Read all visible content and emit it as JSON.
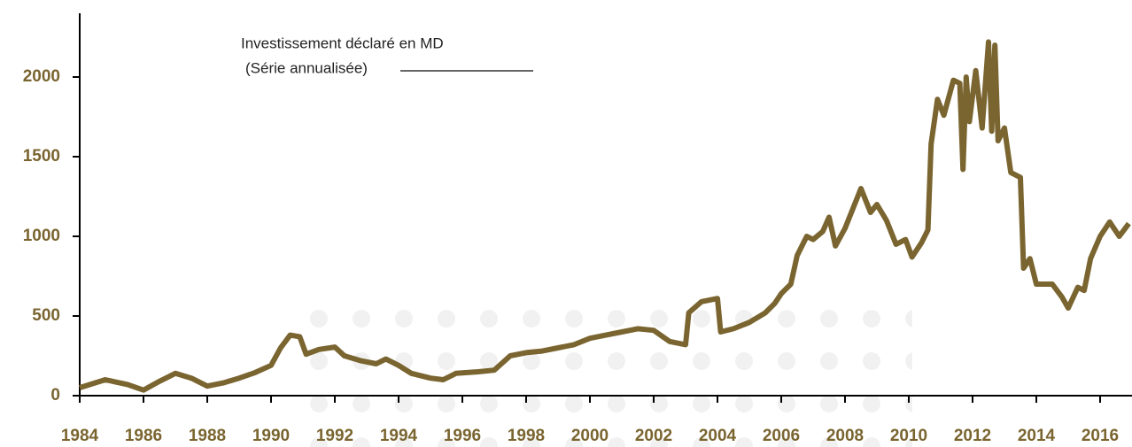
{
  "chart_data": {
    "type": "line",
    "series": [
      {
        "name": "Investissement déclaré en MD",
        "name_note": "(Série annualisée)",
        "color": "#7a6530",
        "x": [
          1984.0,
          1984.8,
          1985.5,
          1986.0,
          1986.5,
          1987.0,
          1987.5,
          1988.0,
          1988.5,
          1989.0,
          1989.5,
          1990.0,
          1990.3,
          1990.6,
          1990.9,
          1991.1,
          1991.5,
          1992.0,
          1992.3,
          1992.8,
          1993.3,
          1993.6,
          1994.0,
          1994.4,
          1995.0,
          1995.4,
          1995.8,
          1996.5,
          1997.0,
          1997.5,
          1998.0,
          1998.5,
          1999.0,
          1999.5,
          2000.0,
          2000.5,
          2001.0,
          2001.5,
          2002.0,
          2002.5,
          2003.0,
          2003.1,
          2003.5,
          2004.0,
          2004.1,
          2004.5,
          2005.0,
          2005.5,
          2005.8,
          2006.0,
          2006.3,
          2006.5,
          2006.8,
          2007.0,
          2007.3,
          2007.5,
          2007.7,
          2008.0,
          2008.2,
          2008.5,
          2008.8,
          2009.0,
          2009.3,
          2009.6,
          2009.9,
          2010.1,
          2010.4,
          2010.6,
          2010.7,
          2010.9,
          2011.1,
          2011.4,
          2011.6,
          2011.7,
          2011.8,
          2011.9,
          2012.1,
          2012.3,
          2012.5,
          2012.6,
          2012.7,
          2012.8,
          2013.0,
          2013.2,
          2013.5,
          2013.6,
          2013.8,
          2014.0,
          2014.5,
          2014.8,
          2015.0,
          2015.3,
          2015.5,
          2015.7,
          2016.0,
          2016.3,
          2016.6,
          2016.9
        ],
        "values": [
          50,
          100,
          70,
          35,
          90,
          140,
          110,
          60,
          80,
          110,
          145,
          190,
          300,
          380,
          370,
          260,
          290,
          305,
          250,
          220,
          200,
          230,
          190,
          140,
          110,
          100,
          140,
          150,
          160,
          250,
          270,
          280,
          300,
          320,
          360,
          380,
          400,
          420,
          410,
          340,
          320,
          520,
          590,
          610,
          400,
          420,
          460,
          520,
          580,
          640,
          700,
          880,
          1000,
          980,
          1030,
          1120,
          940,
          1050,
          1150,
          1300,
          1150,
          1200,
          1100,
          950,
          980,
          870,
          960,
          1040,
          1580,
          1860,
          1760,
          1980,
          1960,
          1420,
          2000,
          1720,
          2040,
          1680,
          2220,
          1660,
          2200,
          1600,
          1680,
          1400,
          1370,
          800,
          860,
          700,
          700,
          620,
          550,
          680,
          660,
          860,
          1000,
          1090,
          1000,
          1080
        ]
      }
    ],
    "xlim": [
      1984,
      2017
    ],
    "xticks": [
      1984,
      1986,
      1988,
      1990,
      1992,
      1994,
      1996,
      1998,
      2000,
      2002,
      2004,
      2006,
      2008,
      2010,
      2012,
      2014,
      2016
    ],
    "ylim": [
      0,
      2400
    ],
    "yticks": [
      0,
      500,
      1000,
      1500,
      2000
    ]
  }
}
